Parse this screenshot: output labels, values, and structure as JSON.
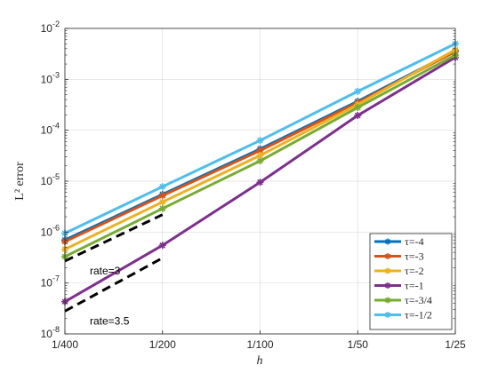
{
  "chart_data": {
    "type": "line",
    "xscale": "log",
    "yscale": "log",
    "xlabel": "h",
    "ylabel": "L² error",
    "x": [
      0.0025,
      0.005,
      0.01,
      0.02,
      0.04
    ],
    "xtick_labels": [
      "1/400",
      "1/200",
      "1/100",
      "1/50",
      "1/25"
    ],
    "ylim": [
      1e-08,
      0.01
    ],
    "ytick_values": [
      1e-08,
      1e-07,
      1e-06,
      1e-05,
      0.0001,
      0.001,
      0.01
    ],
    "ytick_labels": [
      {
        "base": "10",
        "exp": "-8"
      },
      {
        "base": "10",
        "exp": "-7"
      },
      {
        "base": "10",
        "exp": "-6"
      },
      {
        "base": "10",
        "exp": "-5"
      },
      {
        "base": "10",
        "exp": "-4"
      },
      {
        "base": "10",
        "exp": "-3"
      },
      {
        "base": "10",
        "exp": "-2"
      }
    ],
    "grid": true,
    "legend_position": "bottom-right",
    "series": [
      {
        "name": "τ=-4",
        "color": "#0072BD",
        "marker": "star",
        "values": [
          7e-07,
          5.5e-06,
          4.3e-05,
          0.00037,
          0.0036
        ]
      },
      {
        "name": "τ=-3",
        "color": "#D95319",
        "marker": "star",
        "values": [
          6.5e-07,
          5.2e-06,
          4e-05,
          0.00035,
          0.0035
        ]
      },
      {
        "name": "τ=-2",
        "color": "#EDB120",
        "marker": "star",
        "values": [
          4.6e-07,
          3.9e-06,
          3.2e-05,
          0.00032,
          0.0038
        ]
      },
      {
        "name": "τ=-1",
        "color": "#7E2F8E",
        "marker": "star",
        "values": [
          4.3e-08,
          5.5e-07,
          9.5e-06,
          0.000195,
          0.0027
        ]
      },
      {
        "name": "τ=-3/4",
        "color": "#77AC30",
        "marker": "star",
        "values": [
          3.3e-07,
          2.9e-06,
          2.5e-05,
          0.00028,
          0.003
        ]
      },
      {
        "name": "τ=-1/2",
        "color": "#4DBEEE",
        "marker": "star",
        "values": [
          9.5e-07,
          7.8e-06,
          6.3e-05,
          0.00058,
          0.005
        ]
      }
    ],
    "reference_lines": [
      {
        "label": "rate=3",
        "x": [
          0.0025,
          0.005
        ],
        "values": [
          2.7e-07,
          2.2e-06
        ]
      },
      {
        "label": "rate=3.5",
        "x": [
          0.0025,
          0.005
        ],
        "values": [
          2.8e-08,
          3.1e-07
        ]
      }
    ]
  }
}
